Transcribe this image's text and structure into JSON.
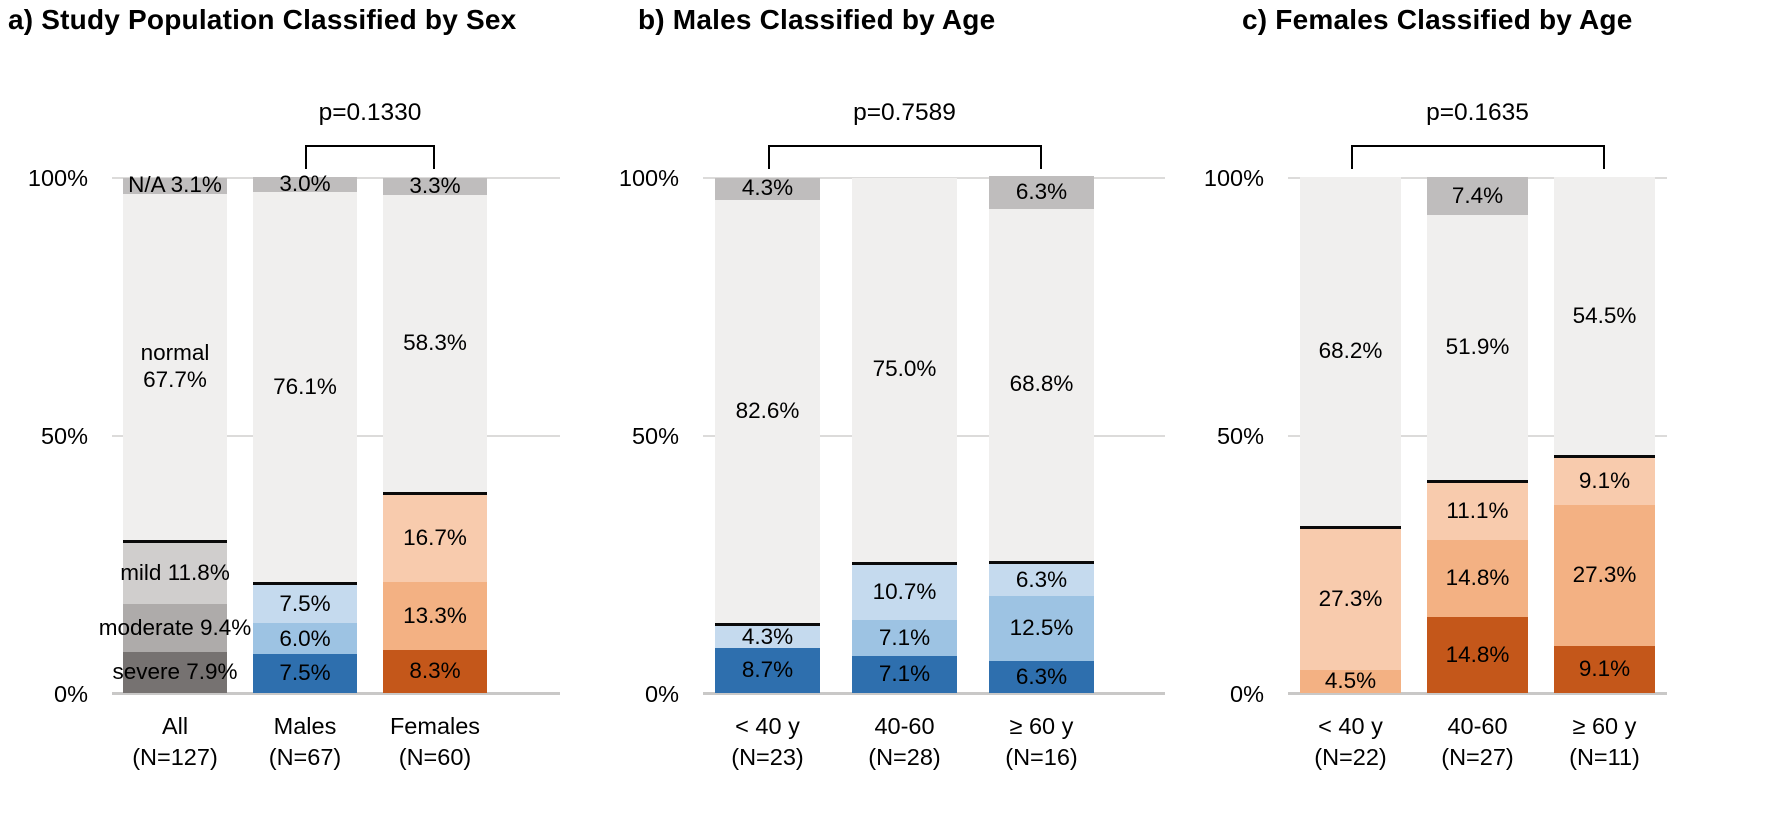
{
  "figure_type": "three-panel stacked percentage bar chart",
  "chart_data": {
    "type": "bar",
    "stacked": true,
    "unit": "%",
    "ylim": [
      0,
      100
    ],
    "yticks": [
      "0%",
      "50%",
      "100%"
    ],
    "grid": "horizontal lines at 0%, 50%, 100%",
    "legend_position": "none (severity labels written on panel a first bar)",
    "severity_order_bottom_to_top": [
      "severe",
      "moderate",
      "mild",
      "normal",
      "na"
    ],
    "divider_line": "black line drawn across each bar at top of mild segment",
    "colors": {
      "normal": "#f0efee",
      "na": "#bfbdbd",
      "gray": {
        "mild": "#d0cecd",
        "moderate": "#aeabaa",
        "severe": "#767271"
      },
      "blue": {
        "mild": "#c5daee",
        "moderate": "#9dc3e3",
        "severe": "#2e6fae"
      },
      "orange": {
        "mild": "#f8cbad",
        "moderate": "#f3b183",
        "severe": "#c4571a"
      }
    },
    "panels": [
      {
        "key": "a",
        "title": "a) Study Population Classified by Sex",
        "p_label": "p=0.1330",
        "p_span": [
          1,
          2
        ],
        "bars": [
          {
            "name": "All",
            "x_label": "All\n(N=127)",
            "palette": "gray",
            "segments": [
              {
                "severity": "severe",
                "value": 7.9,
                "label": "severe 7.9%"
              },
              {
                "severity": "moderate",
                "value": 9.4,
                "label": "moderate 9.4%"
              },
              {
                "severity": "mild",
                "value": 11.8,
                "label": "mild 11.8%"
              },
              {
                "severity": "normal",
                "value": 67.7,
                "label": "normal\n67.7%"
              },
              {
                "severity": "na",
                "value": 3.1,
                "label": "N/A 3.1%"
              }
            ]
          },
          {
            "name": "Males",
            "x_label": "Males\n(N=67)",
            "palette": "blue",
            "segments": [
              {
                "severity": "severe",
                "value": 7.5,
                "label": "7.5%"
              },
              {
                "severity": "moderate",
                "value": 6.0,
                "label": "6.0%"
              },
              {
                "severity": "mild",
                "value": 7.5,
                "label": "7.5%"
              },
              {
                "severity": "normal",
                "value": 76.1,
                "label": "76.1%"
              },
              {
                "severity": "na",
                "value": 3.0,
                "label": "3.0%"
              }
            ]
          },
          {
            "name": "Females",
            "x_label": "Females\n(N=60)",
            "palette": "orange",
            "segments": [
              {
                "severity": "severe",
                "value": 8.3,
                "label": "8.3%"
              },
              {
                "severity": "moderate",
                "value": 13.3,
                "label": "13.3%"
              },
              {
                "severity": "mild",
                "value": 16.7,
                "label": "16.7%"
              },
              {
                "severity": "normal",
                "value": 58.3,
                "label": "58.3%"
              },
              {
                "severity": "na",
                "value": 3.3,
                "label": "3.3%"
              }
            ]
          }
        ]
      },
      {
        "key": "b",
        "title": "b) Males Classified by Age",
        "p_label": "p=0.7589",
        "p_span": [
          0,
          2
        ],
        "bars": [
          {
            "name": "under 40 y",
            "x_label": "< 40 y\n(N=23)",
            "palette": "blue",
            "segments": [
              {
                "severity": "severe",
                "value": 8.7,
                "label": "8.7%"
              },
              {
                "severity": "mild",
                "value": 4.3,
                "label": "4.3%"
              },
              {
                "severity": "normal",
                "value": 82.6,
                "label": "82.6%"
              },
              {
                "severity": "na",
                "value": 4.3,
                "label": "4.3%"
              }
            ]
          },
          {
            "name": "40-60",
            "x_label": "40-60\n(N=28)",
            "palette": "blue",
            "segments": [
              {
                "severity": "severe",
                "value": 7.1,
                "label": "7.1%"
              },
              {
                "severity": "moderate",
                "value": 7.1,
                "label": "7.1%"
              },
              {
                "severity": "mild",
                "value": 10.7,
                "label": "10.7%"
              },
              {
                "severity": "normal",
                "value": 75.0,
                "label": "75.0%"
              }
            ]
          },
          {
            "name": "60 y and over",
            "x_label": "≥ 60 y\n(N=16)",
            "palette": "blue",
            "segments": [
              {
                "severity": "severe",
                "value": 6.3,
                "label": "6.3%"
              },
              {
                "severity": "moderate",
                "value": 12.5,
                "label": "12.5%"
              },
              {
                "severity": "mild",
                "value": 6.3,
                "label": "6.3%"
              },
              {
                "severity": "normal",
                "value": 68.8,
                "label": "68.8%"
              },
              {
                "severity": "na",
                "value": 6.3,
                "label": "6.3%"
              }
            ]
          }
        ]
      },
      {
        "key": "c",
        "title": "c) Females Classified by Age",
        "p_label": "p=0.1635",
        "p_span": [
          0,
          2
        ],
        "bars": [
          {
            "name": "under 40 y",
            "x_label": "< 40 y\n(N=22)",
            "palette": "orange",
            "segments": [
              {
                "severity": "moderate",
                "value": 4.5,
                "label": "4.5%"
              },
              {
                "severity": "mild",
                "value": 27.3,
                "label": "27.3%"
              },
              {
                "severity": "normal",
                "value": 68.2,
                "label": "68.2%"
              }
            ]
          },
          {
            "name": "40-60",
            "x_label": "40-60\n(N=27)",
            "palette": "orange",
            "segments": [
              {
                "severity": "severe",
                "value": 14.8,
                "label": "14.8%"
              },
              {
                "severity": "moderate",
                "value": 14.8,
                "label": "14.8%"
              },
              {
                "severity": "mild",
                "value": 11.1,
                "label": "11.1%"
              },
              {
                "severity": "normal",
                "value": 51.9,
                "label": "51.9%"
              },
              {
                "severity": "na",
                "value": 7.4,
                "label": "7.4%"
              }
            ]
          },
          {
            "name": "60 y and over",
            "x_label": "≥ 60 y\n(N=11)",
            "palette": "orange",
            "segments": [
              {
                "severity": "severe",
                "value": 9.1,
                "label": "9.1%"
              },
              {
                "severity": "moderate",
                "value": 27.3,
                "label": "27.3%"
              },
              {
                "severity": "mild",
                "value": 9.1,
                "label": "9.1%"
              },
              {
                "severity": "normal",
                "value": 54.5,
                "label": "54.5%"
              }
            ]
          }
        ]
      }
    ]
  }
}
